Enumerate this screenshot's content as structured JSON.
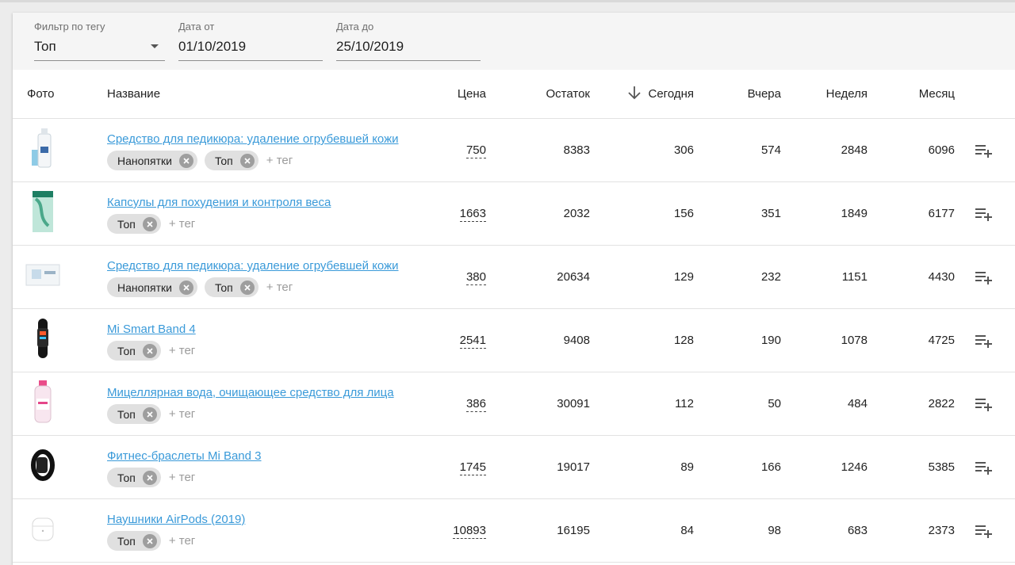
{
  "filters": {
    "tag": {
      "label": "Фильтр по тегу",
      "value": "Топ"
    },
    "date_from": {
      "label": "Дата от",
      "value": "01/10/2019"
    },
    "date_to": {
      "label": "Дата до",
      "value": "25/10/2019"
    }
  },
  "columns": {
    "photo": "Фото",
    "name": "Название",
    "price": "Цена",
    "stock": "Остаток",
    "today": "Сегодня",
    "yesterday": "Вчера",
    "week": "Неделя",
    "month": "Месяц"
  },
  "add_tag_label": "+ тег",
  "rows": [
    {
      "name": "Средство для педикюра: удаление огрубевшей кожи",
      "photo_icon": "bottle-icon",
      "tags": [
        "Нанопятки",
        "Топ"
      ],
      "price": "750",
      "stock": "8383",
      "today": "306",
      "yesterday": "574",
      "week": "2848",
      "month": "6096"
    },
    {
      "name": "Капсулы для похудения и контроля веса",
      "photo_icon": "box-icon",
      "tags": [
        "Топ"
      ],
      "price": "1663",
      "stock": "2032",
      "today": "156",
      "yesterday": "351",
      "week": "1849",
      "month": "6177"
    },
    {
      "name": "Средство для педикюра: удаление огрубевшей кожи",
      "photo_icon": "pack-icon",
      "tags": [
        "Нанопятки",
        "Топ"
      ],
      "price": "380",
      "stock": "20634",
      "today": "129",
      "yesterday": "232",
      "week": "1151",
      "month": "4430"
    },
    {
      "name": "Mi Smart Band 4",
      "photo_icon": "band-icon",
      "tags": [
        "Топ"
      ],
      "price": "2541",
      "stock": "9408",
      "today": "128",
      "yesterday": "190",
      "week": "1078",
      "month": "4725"
    },
    {
      "name": "Мицеллярная вода, очищающее средство для лица",
      "photo_icon": "micellar-bottle-icon",
      "tags": [
        "Топ"
      ],
      "price": "386",
      "stock": "30091",
      "today": "112",
      "yesterday": "50",
      "week": "484",
      "month": "2822"
    },
    {
      "name": "Фитнес-браслеты Mi Band 3",
      "photo_icon": "band3-icon",
      "tags": [
        "Топ"
      ],
      "price": "1745",
      "stock": "19017",
      "today": "89",
      "yesterday": "166",
      "week": "1246",
      "month": "5385"
    },
    {
      "name": "Наушники AirPods (2019)",
      "photo_icon": "airpods-icon",
      "tags": [
        "Топ"
      ],
      "price": "10893",
      "stock": "16195",
      "today": "84",
      "yesterday": "98",
      "week": "683",
      "month": "2373"
    }
  ],
  "colors": {
    "link": "#3a9ad9",
    "chip": "#e0e0e0",
    "chip_close": "#9e9e9e"
  }
}
